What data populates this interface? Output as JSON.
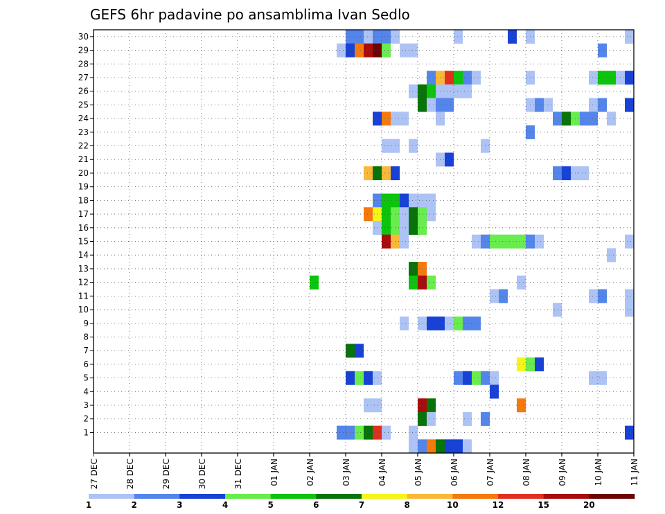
{
  "chart_data": {
    "type": "heatmap",
    "title": "GEFS 6hr padavine po ansamblima Ivan Sedlo",
    "x_tick_labels": [
      "27 DEC",
      "28 DEC",
      "29 DEC",
      "30 DEC",
      "31 DEC",
      "01 JAN",
      "02 JAN",
      "03 JAN",
      "04 JAN",
      "05 JAN",
      "06 JAN",
      "07 JAN",
      "08 JAN",
      "09 JAN",
      "10 JAN",
      "11 JAN"
    ],
    "y_tick_labels": [
      "1",
      "2",
      "3",
      "4",
      "5",
      "6",
      "7",
      "8",
      "9",
      "10",
      "11",
      "12",
      "13",
      "14",
      "15",
      "16",
      "17",
      "18",
      "19",
      "20",
      "21",
      "22",
      "23",
      "24",
      "25",
      "26",
      "27",
      "28",
      "29",
      "30"
    ],
    "xlim_days": [
      0,
      15
    ],
    "ylim_members": [
      0,
      30
    ],
    "grid": "dotted",
    "legend_placement": "bottom",
    "color_scale": [
      {
        "level": "1",
        "color": "#adc3f5"
      },
      {
        "level": "2",
        "color": "#5485eb"
      },
      {
        "level": "3",
        "color": "#1842d6"
      },
      {
        "level": "4",
        "color": "#69ec4d"
      },
      {
        "level": "5",
        "color": "#0bc40b"
      },
      {
        "level": "6",
        "color": "#087308"
      },
      {
        "level": "7",
        "color": "#f5f51a"
      },
      {
        "level": "8",
        "color": "#f9b83a"
      },
      {
        "level": "10",
        "color": "#f5790d"
      },
      {
        "level": "12",
        "color": "#e0301f"
      },
      {
        "level": "15",
        "color": "#a80c0c"
      },
      {
        "level": "20",
        "color": "#6b0505"
      }
    ],
    "cells_note": "each cell = [member, start day offset from 27 DEC 00z, end day offset, color class index 0-11]",
    "cells": [
      [
        30,
        7.0,
        7.5,
        1
      ],
      [
        30,
        7.5,
        7.75,
        0
      ],
      [
        30,
        7.75,
        8.25,
        1
      ],
      [
        30,
        8.25,
        8.5,
        0
      ],
      [
        30,
        10.0,
        10.25,
        0
      ],
      [
        30,
        11.5,
        11.75,
        2
      ],
      [
        30,
        12.0,
        12.25,
        0
      ],
      [
        30,
        14.75,
        15.0,
        0
      ],
      [
        29,
        6.75,
        7.0,
        0
      ],
      [
        29,
        7.0,
        7.25,
        2
      ],
      [
        29,
        7.25,
        7.5,
        8
      ],
      [
        29,
        7.5,
        7.75,
        10
      ],
      [
        29,
        7.75,
        8.0,
        11
      ],
      [
        29,
        8.0,
        8.25,
        3
      ],
      [
        29,
        8.5,
        9.0,
        0
      ],
      [
        29,
        14.0,
        14.25,
        1
      ],
      [
        27,
        9.25,
        9.5,
        1
      ],
      [
        27,
        9.5,
        9.75,
        7
      ],
      [
        27,
        9.75,
        10.0,
        9
      ],
      [
        27,
        10.0,
        10.25,
        4
      ],
      [
        27,
        10.25,
        10.5,
        1
      ],
      [
        27,
        10.5,
        10.75,
        0
      ],
      [
        27,
        12.0,
        12.25,
        0
      ],
      [
        27,
        13.75,
        14.0,
        0
      ],
      [
        27,
        14.0,
        14.5,
        4
      ],
      [
        27,
        14.5,
        14.75,
        0
      ],
      [
        27,
        14.75,
        15.0,
        2
      ],
      [
        26,
        8.75,
        9.0,
        0
      ],
      [
        26,
        9.0,
        9.25,
        5
      ],
      [
        26,
        9.25,
        9.5,
        4
      ],
      [
        26,
        9.5,
        10.5,
        0
      ],
      [
        25,
        9.0,
        9.25,
        5
      ],
      [
        25,
        9.25,
        9.5,
        0
      ],
      [
        25,
        9.5,
        10.0,
        1
      ],
      [
        25,
        12.0,
        12.25,
        0
      ],
      [
        25,
        12.25,
        12.5,
        1
      ],
      [
        25,
        12.5,
        12.75,
        0
      ],
      [
        25,
        13.75,
        14.0,
        0
      ],
      [
        25,
        14.0,
        14.25,
        1
      ],
      [
        25,
        14.75,
        15.0,
        2
      ],
      [
        24,
        7.75,
        8.0,
        2
      ],
      [
        24,
        8.0,
        8.25,
        8
      ],
      [
        24,
        8.25,
        8.75,
        0
      ],
      [
        24,
        9.5,
        9.75,
        0
      ],
      [
        24,
        12.75,
        13.0,
        1
      ],
      [
        24,
        13.0,
        13.25,
        5
      ],
      [
        24,
        13.25,
        13.5,
        3
      ],
      [
        24,
        13.5,
        14.0,
        1
      ],
      [
        24,
        14.25,
        14.5,
        0
      ],
      [
        23,
        12.0,
        12.25,
        1
      ],
      [
        22,
        8.0,
        8.5,
        0
      ],
      [
        22,
        8.75,
        9.0,
        0
      ],
      [
        22,
        10.75,
        11.0,
        0
      ],
      [
        21,
        9.5,
        9.75,
        0
      ],
      [
        21,
        9.75,
        10.0,
        2
      ],
      [
        20,
        7.5,
        7.75,
        7
      ],
      [
        20,
        7.75,
        8.0,
        5
      ],
      [
        20,
        8.0,
        8.25,
        7
      ],
      [
        20,
        8.25,
        8.5,
        2
      ],
      [
        20,
        12.75,
        13.0,
        1
      ],
      [
        20,
        13.0,
        13.25,
        2
      ],
      [
        20,
        13.25,
        13.75,
        0
      ],
      [
        18,
        7.75,
        8.0,
        1
      ],
      [
        18,
        8.0,
        8.5,
        4
      ],
      [
        18,
        8.5,
        8.75,
        2
      ],
      [
        18,
        8.75,
        9.5,
        0
      ],
      [
        17,
        7.5,
        7.75,
        8
      ],
      [
        17,
        7.75,
        8.0,
        6
      ],
      [
        17,
        8.0,
        8.25,
        4
      ],
      [
        17,
        8.25,
        8.5,
        3
      ],
      [
        17,
        8.5,
        8.75,
        0
      ],
      [
        17,
        8.75,
        9.0,
        5
      ],
      [
        17,
        9.0,
        9.25,
        3
      ],
      [
        17,
        9.25,
        9.5,
        0
      ],
      [
        16,
        7.75,
        8.0,
        0
      ],
      [
        16,
        8.0,
        8.25,
        4
      ],
      [
        16,
        8.25,
        8.5,
        3
      ],
      [
        16,
        8.5,
        8.75,
        0
      ],
      [
        16,
        8.75,
        9.0,
        5
      ],
      [
        16,
        9.0,
        9.25,
        3
      ],
      [
        15,
        8.0,
        8.25,
        10
      ],
      [
        15,
        8.25,
        8.5,
        7
      ],
      [
        15,
        8.5,
        8.75,
        0
      ],
      [
        15,
        10.5,
        10.75,
        0
      ],
      [
        15,
        10.75,
        11.0,
        1
      ],
      [
        15,
        11.0,
        12.0,
        3
      ],
      [
        15,
        12.0,
        12.25,
        1
      ],
      [
        15,
        12.25,
        12.5,
        0
      ],
      [
        15,
        14.75,
        15.0,
        0
      ],
      [
        14,
        14.25,
        14.5,
        0
      ],
      [
        13,
        8.75,
        9.0,
        5
      ],
      [
        13,
        9.0,
        9.25,
        8
      ],
      [
        12,
        6.0,
        6.25,
        4
      ],
      [
        12,
        8.75,
        9.0,
        4
      ],
      [
        12,
        9.0,
        9.25,
        10
      ],
      [
        12,
        9.25,
        9.5,
        3
      ],
      [
        12,
        11.75,
        12.0,
        0
      ],
      [
        11,
        11.0,
        11.25,
        0
      ],
      [
        11,
        11.25,
        11.5,
        1
      ],
      [
        11,
        13.75,
        14.0,
        0
      ],
      [
        11,
        14.0,
        14.25,
        1
      ],
      [
        11,
        14.75,
        15.0,
        0
      ],
      [
        10,
        12.75,
        13.0,
        0
      ],
      [
        10,
        14.75,
        15.0,
        0
      ],
      [
        9,
        8.5,
        8.75,
        0
      ],
      [
        9,
        9.0,
        9.25,
        0
      ],
      [
        9,
        9.25,
        9.75,
        2
      ],
      [
        9,
        9.75,
        10.0,
        0
      ],
      [
        9,
        10.0,
        10.25,
        3
      ],
      [
        9,
        10.25,
        10.75,
        1
      ],
      [
        7,
        7.0,
        7.25,
        5
      ],
      [
        7,
        7.25,
        7.5,
        2
      ],
      [
        6,
        11.75,
        12.0,
        6
      ],
      [
        6,
        12.0,
        12.25,
        3
      ],
      [
        6,
        12.25,
        12.5,
        2
      ],
      [
        5,
        7.0,
        7.25,
        2
      ],
      [
        5,
        7.25,
        7.5,
        3
      ],
      [
        5,
        7.5,
        7.75,
        2
      ],
      [
        5,
        7.75,
        8.0,
        0
      ],
      [
        5,
        10.0,
        10.25,
        1
      ],
      [
        5,
        10.25,
        10.5,
        2
      ],
      [
        5,
        10.5,
        10.75,
        3
      ],
      [
        5,
        10.75,
        11.0,
        1
      ],
      [
        5,
        11.0,
        11.25,
        0
      ],
      [
        5,
        13.75,
        14.25,
        0
      ],
      [
        4,
        11.0,
        11.25,
        2
      ],
      [
        3,
        7.5,
        8.0,
        0
      ],
      [
        3,
        9.0,
        9.25,
        10
      ],
      [
        3,
        9.25,
        9.5,
        5
      ],
      [
        3,
        11.75,
        12.0,
        8
      ],
      [
        2,
        9.0,
        9.25,
        5
      ],
      [
        2,
        9.25,
        9.5,
        0
      ],
      [
        2,
        10.25,
        10.5,
        0
      ],
      [
        2,
        10.75,
        11.0,
        1
      ],
      [
        1,
        6.75,
        7.25,
        1
      ],
      [
        1,
        7.25,
        7.5,
        3
      ],
      [
        1,
        7.5,
        7.75,
        5
      ],
      [
        1,
        7.75,
        8.0,
        9
      ],
      [
        1,
        8.0,
        8.25,
        0
      ],
      [
        1,
        8.75,
        9.0,
        0
      ],
      [
        1,
        14.75,
        15.0,
        2
      ],
      [
        0,
        8.75,
        9.0,
        0
      ],
      [
        0,
        9.0,
        9.25,
        1
      ],
      [
        0,
        9.25,
        9.5,
        8
      ],
      [
        0,
        9.5,
        9.75,
        5
      ],
      [
        0,
        9.75,
        10.0,
        2
      ],
      [
        0,
        10.0,
        10.25,
        2
      ],
      [
        0,
        10.25,
        10.5,
        0
      ]
    ]
  }
}
